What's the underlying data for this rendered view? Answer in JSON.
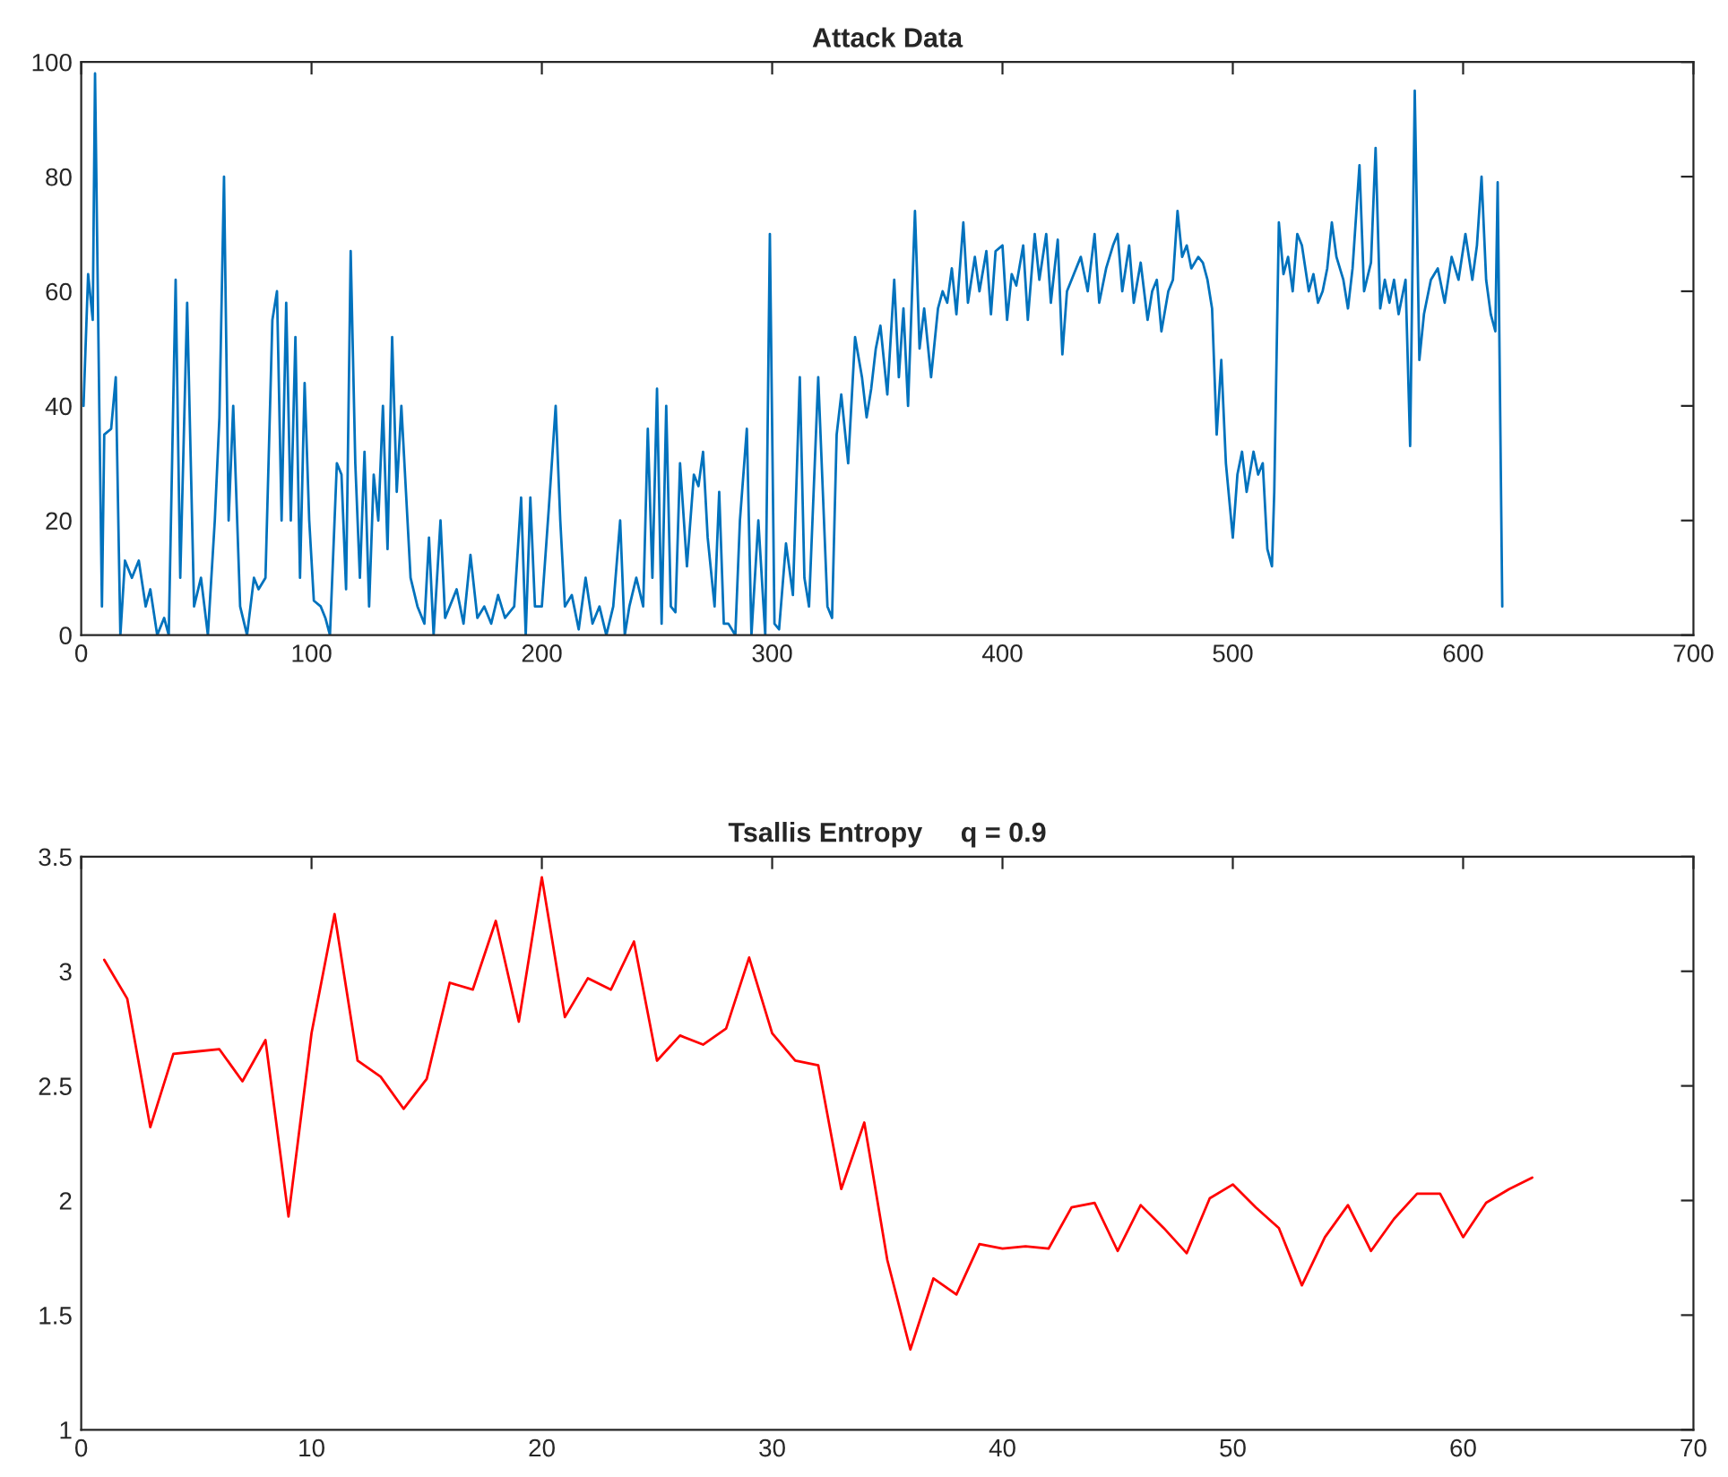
{
  "chart_data": [
    {
      "type": "line",
      "title": "Attack Data",
      "xlim": [
        0,
        700
      ],
      "ylim": [
        0,
        100
      ],
      "xticks": [
        0,
        100,
        200,
        300,
        400,
        500,
        600,
        700
      ],
      "yticks": [
        0,
        20,
        40,
        60,
        80,
        100
      ],
      "grid": false,
      "series": [
        {
          "color": "#0072bd",
          "x": [
            1,
            3,
            5,
            6,
            8,
            9,
            10,
            13,
            15,
            17,
            19,
            22,
            25,
            28,
            30,
            33,
            36,
            38,
            41,
            43,
            46,
            49,
            52,
            55,
            58,
            60,
            62,
            64,
            66,
            69,
            72,
            75,
            77,
            80,
            83,
            85,
            87,
            89,
            91,
            93,
            95,
            97,
            99,
            101,
            104,
            106,
            108,
            111,
            113,
            115,
            117,
            119,
            121,
            123,
            125,
            127,
            129,
            131,
            133,
            135,
            137,
            139,
            141,
            143,
            146,
            149,
            151,
            153,
            156,
            158,
            160,
            163,
            166,
            169,
            172,
            175,
            178,
            181,
            184,
            188,
            191,
            193,
            195,
            197,
            200,
            203,
            206,
            208,
            210,
            213,
            216,
            219,
            222,
            225,
            228,
            231,
            234,
            236,
            238,
            241,
            244,
            246,
            248,
            250,
            252,
            254,
            256,
            258,
            260,
            263,
            266,
            268,
            270,
            272,
            275,
            277,
            279,
            281,
            284,
            286,
            289,
            291,
            294,
            297,
            299,
            301,
            303,
            306,
            309,
            312,
            314,
            316,
            318,
            320,
            322,
            324,
            326,
            328,
            330,
            333,
            336,
            339,
            341,
            343,
            345,
            347,
            350,
            353,
            355,
            357,
            359,
            362,
            364,
            366,
            369,
            372,
            374,
            376,
            378,
            380,
            383,
            385,
            388,
            390,
            393,
            395,
            397,
            400,
            402,
            404,
            406,
            409,
            411,
            414,
            416,
            419,
            421,
            424,
            426,
            428,
            431,
            434,
            437,
            440,
            442,
            445,
            448,
            450,
            452,
            455,
            457,
            460,
            463,
            465,
            467,
            469,
            472,
            474,
            476,
            478,
            480,
            482,
            485,
            487,
            489,
            491,
            493,
            495,
            497,
            500,
            502,
            504,
            506,
            509,
            511,
            513,
            515,
            517,
            518,
            520,
            522,
            524,
            526,
            528,
            530,
            533,
            535,
            537,
            539,
            541,
            543,
            545,
            548,
            550,
            552,
            555,
            557,
            560,
            562,
            564,
            566,
            568,
            570,
            572,
            575,
            577,
            579,
            581,
            583,
            586,
            589,
            592,
            595,
            598,
            601,
            604,
            606,
            608,
            610,
            612,
            614,
            615,
            617
          ],
          "values": [
            40,
            63,
            55,
            98,
            35,
            5,
            35,
            36,
            45,
            0,
            13,
            10,
            13,
            5,
            8,
            0,
            3,
            0,
            62,
            10,
            58,
            5,
            10,
            0,
            20,
            38,
            80,
            20,
            40,
            5,
            0,
            10,
            8,
            10,
            55,
            60,
            20,
            58,
            20,
            52,
            10,
            44,
            20,
            6,
            5,
            3,
            0,
            30,
            28,
            8,
            67,
            30,
            10,
            32,
            5,
            28,
            20,
            40,
            15,
            52,
            25,
            40,
            25,
            10,
            5,
            2,
            17,
            0,
            20,
            3,
            5,
            8,
            2,
            14,
            3,
            5,
            2,
            7,
            3,
            5,
            24,
            0,
            24,
            5,
            5,
            22,
            40,
            20,
            5,
            7,
            1,
            10,
            2,
            5,
            0,
            5,
            20,
            0,
            5,
            10,
            5,
            36,
            10,
            43,
            2,
            40,
            5,
            4,
            30,
            12,
            28,
            26,
            32,
            17,
            5,
            25,
            2,
            2,
            0,
            20,
            36,
            0,
            20,
            0,
            70,
            2,
            1,
            16,
            7,
            45,
            10,
            5,
            25,
            45,
            25,
            5,
            3,
            35,
            42,
            30,
            52,
            45,
            38,
            43,
            50,
            54,
            42,
            62,
            45,
            57,
            40,
            74,
            50,
            57,
            45,
            57,
            60,
            58,
            64,
            56,
            72,
            58,
            66,
            60,
            67,
            56,
            67,
            68,
            55,
            63,
            61,
            68,
            55,
            70,
            62,
            70,
            58,
            69,
            49,
            60,
            63,
            66,
            60,
            70,
            58,
            64,
            68,
            70,
            60,
            68,
            58,
            65,
            55,
            60,
            62,
            53,
            60,
            62,
            74,
            66,
            68,
            64,
            66,
            65,
            62,
            57,
            35,
            48,
            30,
            17,
            28,
            32,
            25,
            32,
            28,
            30,
            15,
            12,
            25,
            72,
            63,
            66,
            60,
            70,
            68,
            60,
            63,
            58,
            60,
            64,
            72,
            66,
            62,
            57,
            64,
            82,
            60,
            65,
            85,
            57,
            62,
            58,
            62,
            56,
            62,
            33,
            95,
            48,
            56,
            62,
            64,
            58,
            66,
            62,
            70,
            62,
            68,
            80,
            62,
            56,
            53,
            79,
            5
          ]
        }
      ]
    },
    {
      "type": "line",
      "title": "Tsallis Entropy     q = 0.9",
      "xlim": [
        0,
        70
      ],
      "ylim": [
        1,
        3.5
      ],
      "xticks": [
        0,
        10,
        20,
        30,
        40,
        50,
        60,
        70
      ],
      "yticks": [
        1,
        1.5,
        2,
        2.5,
        3,
        3.5
      ],
      "grid": false,
      "series": [
        {
          "color": "#ff0000",
          "x": [
            1,
            2,
            3,
            4,
            5,
            6,
            7,
            8,
            9,
            10,
            11,
            12,
            13,
            14,
            15,
            16,
            17,
            18,
            19,
            20,
            21,
            22,
            23,
            24,
            25,
            26,
            27,
            28,
            29,
            30,
            31,
            32,
            33,
            34,
            35,
            36,
            37,
            38,
            39,
            40,
            41,
            42,
            43,
            44,
            45,
            46,
            47,
            48,
            49,
            50,
            51,
            52,
            53,
            54,
            55,
            56,
            57,
            58,
            59,
            60,
            61,
            62,
            63
          ],
          "values": [
            3.05,
            2.88,
            2.32,
            2.64,
            2.65,
            2.66,
            2.52,
            2.7,
            1.93,
            2.73,
            3.25,
            2.61,
            2.54,
            2.4,
            2.53,
            2.95,
            2.92,
            3.22,
            2.78,
            3.41,
            2.8,
            2.97,
            2.92,
            3.13,
            2.61,
            2.72,
            2.68,
            2.75,
            3.06,
            2.73,
            2.61,
            2.59,
            2.05,
            2.34,
            1.74,
            1.35,
            1.66,
            1.59,
            1.81,
            1.79,
            1.8,
            1.79,
            1.97,
            1.99,
            1.78,
            1.98,
            1.88,
            1.77,
            2.01,
            2.07,
            1.97,
            1.88,
            1.63,
            1.84,
            1.98,
            1.78,
            1.92,
            2.03,
            2.03,
            1.84,
            1.99,
            2.05,
            2.1
          ]
        }
      ]
    }
  ]
}
